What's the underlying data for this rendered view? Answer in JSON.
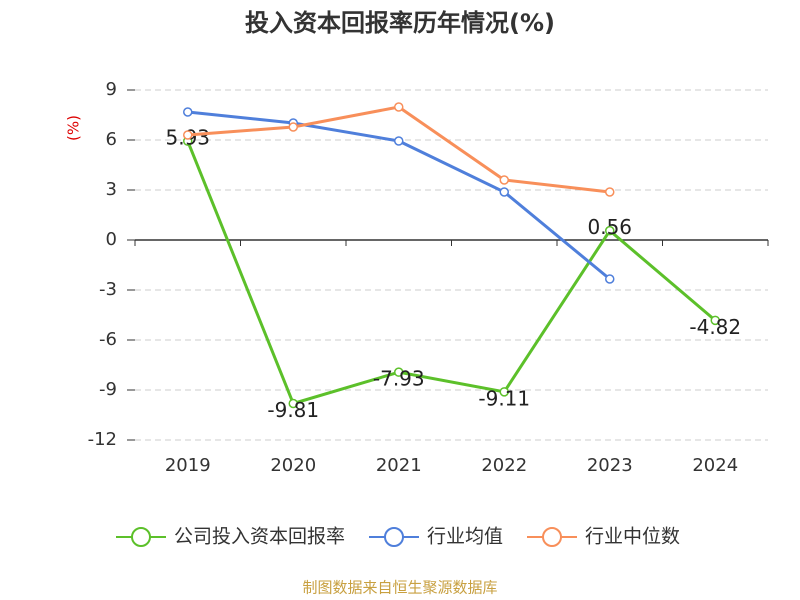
{
  "chart_data": {
    "type": "line",
    "title": "投入资本回报率历年情况(%)",
    "y_label": "(%)",
    "source": "制图数据来自恒生聚源数据库",
    "categories": [
      "2019",
      "2020",
      "2021",
      "2022",
      "2023",
      "2024"
    ],
    "series": [
      {
        "name": "公司投入资本回报率",
        "color": "#5cc02a",
        "values": [
          5.93,
          -9.81,
          -7.93,
          -9.11,
          0.56,
          -4.82
        ],
        "show_labels": true
      },
      {
        "name": "行业均值",
        "color": "#4f7fdb",
        "values": [
          7.68,
          7.02,
          5.94,
          2.88,
          -2.34,
          null
        ]
      },
      {
        "name": "行业中位数",
        "color": "#f88f5a",
        "values": [
          6.3,
          6.78,
          7.98,
          3.6,
          2.88,
          null
        ]
      }
    ],
    "ylim": [
      -12,
      9
    ],
    "yticks": [
      -12,
      -9,
      -6,
      -3,
      0,
      3,
      6,
      9
    ],
    "grid": true
  }
}
